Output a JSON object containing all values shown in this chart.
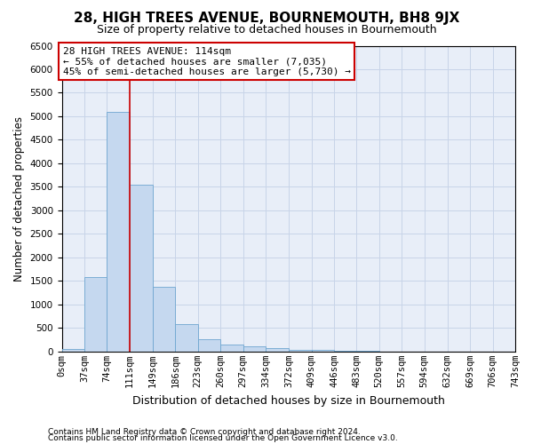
{
  "title": "28, HIGH TREES AVENUE, BOURNEMOUTH, BH8 9JX",
  "subtitle": "Size of property relative to detached houses in Bournemouth",
  "xlabel": "Distribution of detached houses by size in Bournemouth",
  "ylabel": "Number of detached properties",
  "footnote1": "Contains HM Land Registry data © Crown copyright and database right 2024.",
  "footnote2": "Contains public sector information licensed under the Open Government Licence v3.0.",
  "bins": [
    0,
    37,
    74,
    111,
    149,
    186,
    223,
    260,
    297,
    334,
    372,
    409,
    446,
    483,
    520,
    557,
    594,
    632,
    669,
    706,
    743
  ],
  "bar_heights": [
    50,
    1580,
    5100,
    3550,
    1380,
    580,
    270,
    145,
    105,
    70,
    45,
    28,
    18,
    9,
    5,
    3,
    2,
    1,
    1,
    0
  ],
  "bar_color": "#c5d8ef",
  "bar_edge_color": "#6ea6d0",
  "property_bin_index": 3,
  "red_line_color": "#cc0000",
  "annotation_line1": "28 HIGH TREES AVENUE: 114sqm",
  "annotation_line2": "← 55% of detached houses are smaller (7,035)",
  "annotation_line3": "45% of semi-detached houses are larger (5,730) →",
  "annotation_box_color": "#ffffff",
  "annotation_box_edge": "#cc0000",
  "ylim": [
    0,
    6500
  ],
  "ytick_step": 500,
  "grid_color": "#c8d4e8",
  "bg_color": "#e8eef8",
  "title_fontsize": 11,
  "subtitle_fontsize": 9,
  "axis_label_fontsize": 8.5,
  "tick_fontsize": 7.5,
  "annotation_fontsize": 8,
  "footnote_fontsize": 6.5
}
